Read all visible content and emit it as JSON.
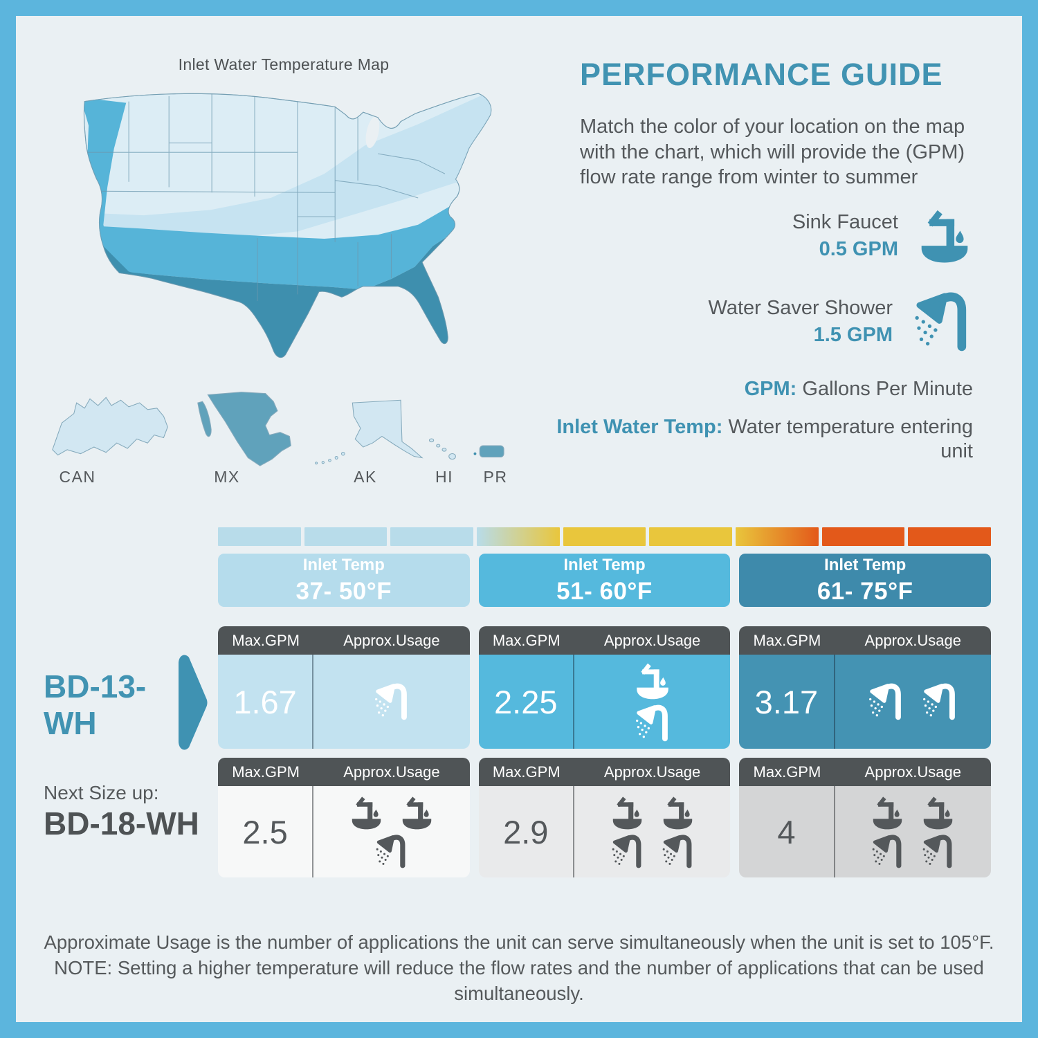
{
  "colors": {
    "frame": "#5cb5dd",
    "background": "#eaf0f3",
    "accent_teal": "#4193b2",
    "text_gray": "#54585b",
    "table_header_gray": "#4f5456"
  },
  "map_section": {
    "title": "Inlet Water Temperature Map",
    "labels": {
      "canada": "CAN",
      "mexico": "MX",
      "alaska": "AK",
      "hawaii": "HI",
      "puerto_rico": "PR"
    },
    "zone_colors": {
      "palest": "#d9edf6",
      "light": "#c6e3f1",
      "medium": "#56b4d8",
      "dark": "#3e8fae",
      "inset_light": "#cde6f2"
    }
  },
  "guide": {
    "title": "PERFORMANCE GUIDE",
    "intro": "Match the color of your location on the map with the chart, which will provide the (GPM) flow rate range from winter to summer",
    "fixtures": [
      {
        "name": "Sink Faucet",
        "flow": "0.5 GPM",
        "icon": "faucet"
      },
      {
        "name": "Water Saver Shower",
        "flow": "1.5 GPM",
        "icon": "shower"
      }
    ],
    "definitions": [
      {
        "term": "GPM:",
        "rest": " Gallons Per Minute"
      },
      {
        "term": "Inlet Water Temp:",
        "rest": " Water temperature entering unit"
      }
    ]
  },
  "chart_data": {
    "type": "table",
    "title": "Performance Guide flow-rate table",
    "gradient_bar": [
      {
        "from": "#b8dcea",
        "to": "#b8dcea"
      },
      {
        "from": "#b8dcea",
        "to": "#b8dcea"
      },
      {
        "from": "#b8dcea",
        "to": "#b8dcea"
      },
      {
        "from": "#b8dcea",
        "to": "#e9c63c"
      },
      {
        "from": "#e9c63c",
        "to": "#e9c63c"
      },
      {
        "from": "#e9c63c",
        "to": "#e9c63c"
      },
      {
        "from": "#e9c63c",
        "to": "#e3591a"
      },
      {
        "from": "#e3591a",
        "to": "#e3591a"
      },
      {
        "from": "#e3591a",
        "to": "#e3591a"
      }
    ],
    "columns": [
      "Max.GPM",
      "Approx.Usage"
    ],
    "temperature_ranges": [
      {
        "label": "Inlet Temp",
        "range": "37- 50°F",
        "header_color": "#b5dcec",
        "cell_color": "#c2e2f0"
      },
      {
        "label": "Inlet Temp",
        "range": "51- 60°F",
        "header_color": "#55b9dd",
        "cell_color": "#55b9dd"
      },
      {
        "label": "Inlet Temp",
        "range": "61- 75°F",
        "header_color": "#3e8aab",
        "cell_color": "#4493b3"
      }
    ],
    "models": [
      {
        "name": "BD-13-WH",
        "cells": [
          {
            "max_gpm": "1.67",
            "faucets": 0,
            "showers": 1
          },
          {
            "max_gpm": "2.25",
            "faucets": 1,
            "showers": 1
          },
          {
            "max_gpm": "3.17",
            "faucets": 0,
            "showers": 2
          }
        ]
      },
      {
        "prefix": "Next Size up:",
        "name": "BD-18-WH",
        "cells": [
          {
            "max_gpm": "2.5",
            "faucets": 2,
            "showers": 1,
            "bg": "#f7f8f8"
          },
          {
            "max_gpm": "2.9",
            "faucets": 2,
            "showers": 2,
            "bg": "#e9eaeb"
          },
          {
            "max_gpm": "4",
            "faucets": 2,
            "showers": 2,
            "bg": "#d4d5d6"
          }
        ]
      }
    ]
  },
  "footnote": "Approximate Usage is the number of applications the unit can serve simultaneously when the unit is set to 105°F. NOTE: Setting a higher temperature will reduce the flow rates and the number of applications that can be used simultaneously."
}
